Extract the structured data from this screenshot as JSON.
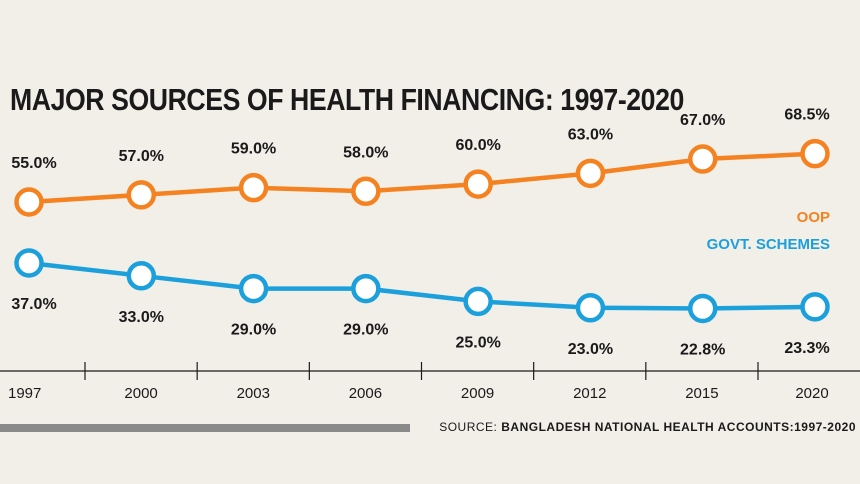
{
  "source_prefix": "SOURCE:",
  "source_name": "BANGLADESH NATIONAL HEALTH ACCOUNTS:1997-2020",
  "colors": {
    "oop": "#f58220",
    "govt": "#1ca0dc",
    "text": "#1a1a1a",
    "marker_fill": "#ffffff"
  },
  "chart_data": {
    "type": "line",
    "title": "MAJOR SOURCES OF HEALTH FINANCING: 1997-2020",
    "x": [
      "1997",
      "2000",
      "2003",
      "2006",
      "2009",
      "2012",
      "2015",
      "2020"
    ],
    "series": [
      {
        "name": "OOP",
        "values": [
          55.0,
          57.0,
          59.0,
          58.0,
          60.0,
          63.0,
          67.0,
          68.5
        ],
        "labels": [
          "55.0%",
          "57.0%",
          "59.0%",
          "58.0%",
          "60.0%",
          "63.0%",
          "67.0%",
          "68.5%"
        ]
      },
      {
        "name": "GOVT. SCHEMES",
        "values": [
          37.0,
          33.0,
          29.0,
          29.0,
          25.0,
          23.0,
          22.8,
          23.3
        ],
        "labels": [
          "37.0%",
          "33.0%",
          "29.0%",
          "29.0%",
          "25.0%",
          "23.0%",
          "22.8%",
          "23.3%"
        ]
      }
    ],
    "legend_position": "right",
    "grid": false
  }
}
